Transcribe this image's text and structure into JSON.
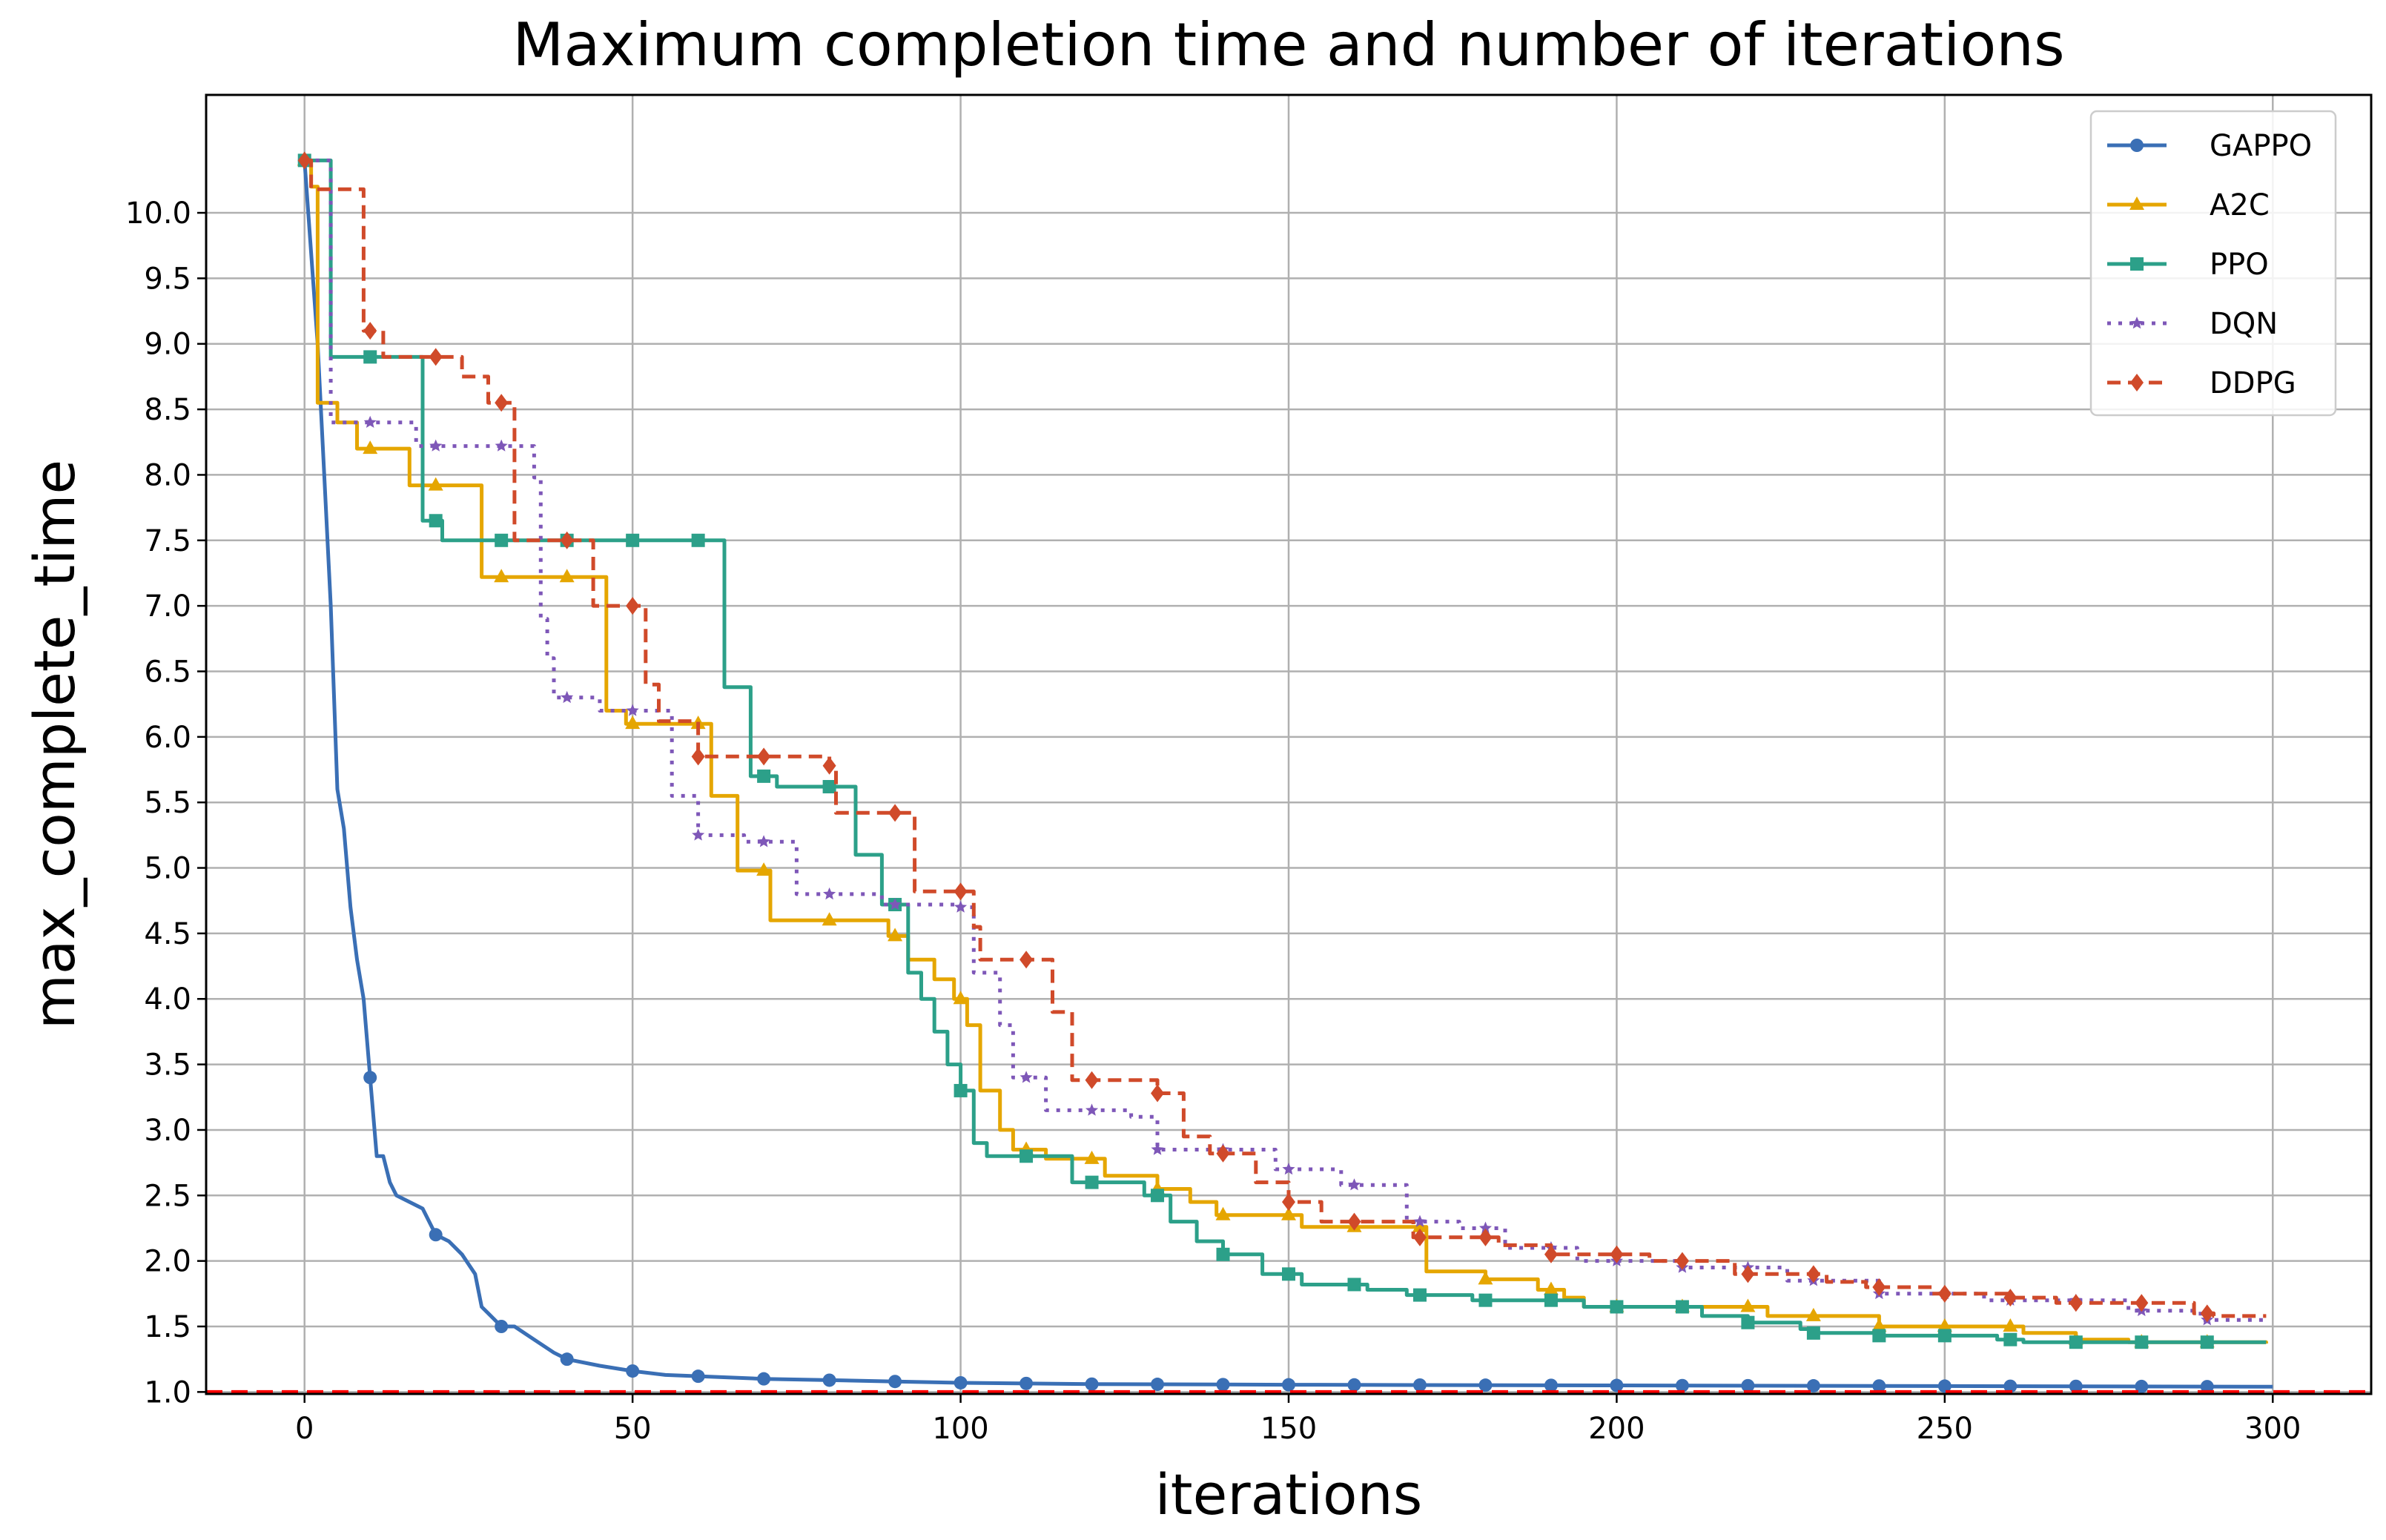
{
  "chart_data": {
    "type": "line",
    "title": "Maximum completion time and number of iterations",
    "xlabel": "iterations",
    "ylabel": "max_complete_time",
    "xlim": [
      -15,
      315
    ],
    "ylim": [
      0.985,
      10.9
    ],
    "x_ticks": [
      0,
      50,
      100,
      150,
      200,
      250,
      300
    ],
    "y_ticks": [
      1.0,
      1.5,
      2.0,
      2.5,
      3.0,
      3.5,
      4.0,
      4.5,
      5.0,
      5.5,
      6.0,
      6.5,
      7.0,
      7.5,
      8.0,
      8.5,
      9.0,
      9.5,
      10.0
    ],
    "x_tick_labels": [
      "0",
      "50",
      "100",
      "150",
      "200",
      "250",
      "300"
    ],
    "y_tick_labels": [
      "1.0",
      "1.5",
      "2.0",
      "2.5",
      "3.0",
      "3.5",
      "4.0",
      "4.5",
      "5.0",
      "5.5",
      "6.0",
      "6.5",
      "7.0",
      "7.5",
      "8.0",
      "8.5",
      "9.0",
      "9.5",
      "10.0"
    ],
    "grid": true,
    "legend_position": "top-right",
    "reference_line": {
      "y": 1.0,
      "style": "dashed",
      "color": "#ff0000"
    },
    "series": [
      {
        "name": "GAPPO",
        "color": "#3a6fb5",
        "marker": "circle",
        "style": "solid",
        "points": [
          [
            0,
            10.4
          ],
          [
            2,
            9.0
          ],
          [
            3,
            8.0
          ],
          [
            4,
            7.0
          ],
          [
            5,
            5.6
          ],
          [
            6,
            5.3
          ],
          [
            7,
            4.7
          ],
          [
            8,
            4.3
          ],
          [
            9,
            4.0
          ],
          [
            10,
            3.4
          ],
          [
            11,
            2.8
          ],
          [
            12,
            2.8
          ],
          [
            13,
            2.6
          ],
          [
            14,
            2.5
          ],
          [
            16,
            2.45
          ],
          [
            18,
            2.4
          ],
          [
            20,
            2.2
          ],
          [
            22,
            2.15
          ],
          [
            24,
            2.05
          ],
          [
            26,
            1.9
          ],
          [
            27,
            1.65
          ],
          [
            28,
            1.6
          ],
          [
            30,
            1.5
          ],
          [
            32,
            1.5
          ],
          [
            35,
            1.4
          ],
          [
            38,
            1.3
          ],
          [
            40,
            1.25
          ],
          [
            45,
            1.2
          ],
          [
            50,
            1.16
          ],
          [
            55,
            1.13
          ],
          [
            60,
            1.12
          ],
          [
            70,
            1.1
          ],
          [
            80,
            1.09
          ],
          [
            90,
            1.08
          ],
          [
            100,
            1.07
          ],
          [
            120,
            1.06
          ],
          [
            150,
            1.055
          ],
          [
            200,
            1.05
          ],
          [
            250,
            1.045
          ],
          [
            300,
            1.04
          ]
        ],
        "markers_at": [
          0,
          10,
          20,
          30,
          40,
          50,
          60,
          70,
          80,
          90,
          100,
          110,
          120,
          130,
          140,
          150,
          160,
          170,
          180,
          190,
          200,
          210,
          220,
          230,
          240,
          250,
          260,
          270,
          280,
          290
        ]
      },
      {
        "name": "A2C",
        "color": "#e5a600",
        "marker": "triangle",
        "style": "solid",
        "steps": [
          [
            0,
            10.4
          ],
          [
            1,
            10.2
          ],
          [
            2,
            8.55
          ],
          [
            5,
            8.4
          ],
          [
            8,
            8.2
          ],
          [
            16,
            7.92
          ],
          [
            27,
            7.22
          ],
          [
            46,
            6.2
          ],
          [
            49,
            6.1
          ],
          [
            62,
            5.55
          ],
          [
            66,
            4.98
          ],
          [
            71,
            4.6
          ],
          [
            89,
            4.48
          ],
          [
            92,
            4.3
          ],
          [
            96,
            4.15
          ],
          [
            99,
            4.0
          ],
          [
            101,
            3.8
          ],
          [
            103,
            3.3
          ],
          [
            106,
            3.0
          ],
          [
            108,
            2.85
          ],
          [
            113,
            2.78
          ],
          [
            122,
            2.65
          ],
          [
            130,
            2.55
          ],
          [
            135,
            2.45
          ],
          [
            139,
            2.35
          ],
          [
            152,
            2.26
          ],
          [
            171,
            1.92
          ],
          [
            180,
            1.86
          ],
          [
            188,
            1.78
          ],
          [
            192,
            1.72
          ],
          [
            195,
            1.65
          ],
          [
            223,
            1.58
          ],
          [
            240,
            1.5
          ],
          [
            262,
            1.45
          ],
          [
            270,
            1.4
          ],
          [
            278,
            1.38
          ],
          [
            299,
            1.37
          ]
        ],
        "markers_at": [
          0,
          10,
          20,
          30,
          40,
          50,
          60,
          70,
          80,
          90,
          100,
          110,
          120,
          130,
          140,
          150,
          160,
          170,
          180,
          190,
          200,
          210,
          220,
          230,
          240,
          250,
          260,
          270,
          280,
          290
        ]
      },
      {
        "name": "PPO",
        "color": "#2ca089",
        "marker": "square",
        "style": "solid",
        "steps": [
          [
            0,
            10.4
          ],
          [
            4,
            8.9
          ],
          [
            18,
            7.65
          ],
          [
            21,
            7.5
          ],
          [
            64,
            6.38
          ],
          [
            68,
            5.7
          ],
          [
            72,
            5.62
          ],
          [
            84,
            5.1
          ],
          [
            88,
            4.72
          ],
          [
            92,
            4.2
          ],
          [
            94,
            4.0
          ],
          [
            96,
            3.75
          ],
          [
            98,
            3.5
          ],
          [
            100,
            3.3
          ],
          [
            102,
            2.9
          ],
          [
            104,
            2.8
          ],
          [
            117,
            2.6
          ],
          [
            128,
            2.5
          ],
          [
            132,
            2.3
          ],
          [
            136,
            2.15
          ],
          [
            140,
            2.05
          ],
          [
            146,
            1.9
          ],
          [
            152,
            1.82
          ],
          [
            162,
            1.78
          ],
          [
            168,
            1.74
          ],
          [
            178,
            1.7
          ],
          [
            185,
            1.7
          ],
          [
            195,
            1.65
          ],
          [
            213,
            1.58
          ],
          [
            220,
            1.53
          ],
          [
            228,
            1.48
          ],
          [
            230,
            1.45
          ],
          [
            240,
            1.43
          ],
          [
            258,
            1.4
          ],
          [
            262,
            1.38
          ],
          [
            299,
            1.38
          ]
        ],
        "markers_at": [
          0,
          10,
          20,
          30,
          40,
          50,
          60,
          70,
          80,
          90,
          100,
          110,
          120,
          130,
          140,
          150,
          160,
          170,
          180,
          190,
          200,
          210,
          220,
          230,
          240,
          250,
          260,
          270,
          280,
          290
        ]
      },
      {
        "name": "DQN",
        "color": "#7e57b8",
        "marker": "star",
        "style": "dotted",
        "steps": [
          [
            0,
            10.4
          ],
          [
            4,
            8.4
          ],
          [
            17,
            8.22
          ],
          [
            35,
            7.98
          ],
          [
            36,
            6.9
          ],
          [
            37,
            6.6
          ],
          [
            38,
            6.3
          ],
          [
            45,
            6.2
          ],
          [
            56,
            5.55
          ],
          [
            60,
            5.25
          ],
          [
            67,
            5.2
          ],
          [
            75,
            4.8
          ],
          [
            88,
            4.72
          ],
          [
            100,
            4.7
          ],
          [
            102,
            4.2
          ],
          [
            106,
            3.8
          ],
          [
            108,
            3.4
          ],
          [
            113,
            3.15
          ],
          [
            126,
            3.1
          ],
          [
            130,
            2.85
          ],
          [
            148,
            2.7
          ],
          [
            158,
            2.58
          ],
          [
            168,
            2.3
          ],
          [
            176,
            2.25
          ],
          [
            183,
            2.1
          ],
          [
            194,
            2.0
          ],
          [
            210,
            1.95
          ],
          [
            226,
            1.85
          ],
          [
            240,
            1.75
          ],
          [
            256,
            1.7
          ],
          [
            278,
            1.62
          ],
          [
            289,
            1.55
          ],
          [
            299,
            1.55
          ]
        ],
        "markers_at": [
          0,
          10,
          20,
          30,
          40,
          50,
          60,
          70,
          80,
          90,
          100,
          110,
          120,
          130,
          140,
          150,
          160,
          170,
          180,
          190,
          200,
          210,
          220,
          230,
          240,
          250,
          260,
          270,
          280,
          290
        ]
      },
      {
        "name": "DDPG",
        "color": "#d04a2a",
        "marker": "diamond",
        "style": "dashed",
        "steps": [
          [
            0,
            10.4
          ],
          [
            1,
            10.18
          ],
          [
            9,
            9.1
          ],
          [
            12,
            8.9
          ],
          [
            24,
            8.75
          ],
          [
            28,
            8.55
          ],
          [
            32,
            7.5
          ],
          [
            44,
            7.0
          ],
          [
            52,
            6.4
          ],
          [
            54,
            6.12
          ],
          [
            60,
            5.85
          ],
          [
            80,
            5.78
          ],
          [
            81,
            5.42
          ],
          [
            93,
            4.82
          ],
          [
            102,
            4.55
          ],
          [
            103,
            4.3
          ],
          [
            114,
            3.9
          ],
          [
            117,
            3.38
          ],
          [
            130,
            3.28
          ],
          [
            134,
            2.95
          ],
          [
            138,
            2.82
          ],
          [
            145,
            2.6
          ],
          [
            150,
            2.45
          ],
          [
            155,
            2.3
          ],
          [
            169,
            2.18
          ],
          [
            182,
            2.12
          ],
          [
            190,
            2.05
          ],
          [
            205,
            2.0
          ],
          [
            218,
            1.9
          ],
          [
            232,
            1.84
          ],
          [
            238,
            1.8
          ],
          [
            248,
            1.75
          ],
          [
            260,
            1.72
          ],
          [
            267,
            1.68
          ],
          [
            288,
            1.6
          ],
          [
            291,
            1.58
          ],
          [
            299,
            1.58
          ]
        ],
        "markers_at": [
          0,
          10,
          20,
          30,
          40,
          50,
          60,
          70,
          80,
          90,
          100,
          110,
          120,
          130,
          140,
          150,
          160,
          170,
          180,
          190,
          200,
          210,
          220,
          230,
          240,
          250,
          260,
          270,
          280,
          290
        ]
      }
    ]
  }
}
